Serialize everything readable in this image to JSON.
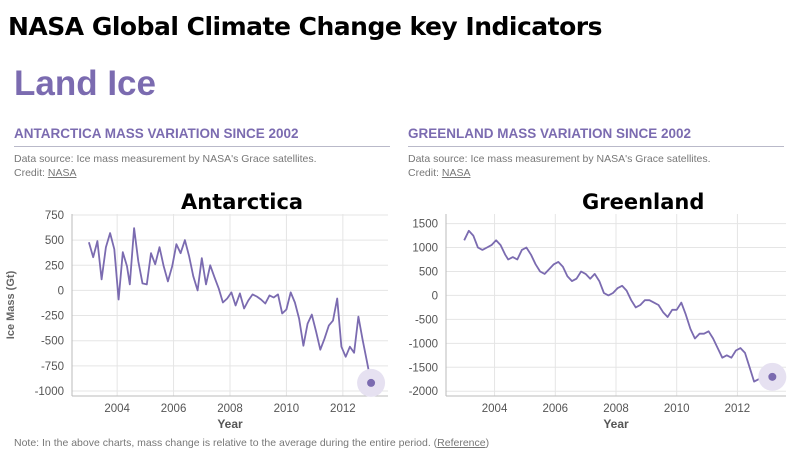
{
  "slide_title": "NASA Global Climate Change key Indicators",
  "section_title": "Land Ice",
  "footnote": {
    "text": "Note: In the above charts, mass change is relative to the average during the entire period. (",
    "link": "Reference",
    "close": ")"
  },
  "colors": {
    "line": "#7b6bb0",
    "marker_halo": "#e6e1f1",
    "grid": "#e5e5e5"
  },
  "chart_data": [
    {
      "type": "line",
      "title": "ANTARCTICA MASS VARIATION SINCE 2002",
      "source": "Data source: Ice mass measurement by NASA's Grace satellites.",
      "credit_label": "Credit:",
      "credit_link": "NASA",
      "overlay_label": "Antarctica",
      "xlabel": "Year",
      "ylabel": "Ice Mass (Gt)",
      "xlim": [
        2002.4,
        2013.6
      ],
      "ylim": [
        -1050,
        760
      ],
      "yticks": [
        750,
        500,
        250,
        0,
        -250,
        -500,
        -750,
        -1000
      ],
      "xticks": [
        2004,
        2006,
        2008,
        2010,
        2012
      ],
      "grid": true,
      "x": [
        2003.0,
        2003.15,
        2003.3,
        2003.45,
        2003.6,
        2003.75,
        2003.9,
        2004.05,
        2004.2,
        2004.35,
        2004.45,
        2004.6,
        2004.75,
        2004.9,
        2005.05,
        2005.2,
        2005.35,
        2005.5,
        2005.65,
        2005.8,
        2005.95,
        2006.1,
        2006.25,
        2006.4,
        2006.55,
        2006.7,
        2006.85,
        2007.0,
        2007.15,
        2007.3,
        2007.45,
        2007.6,
        2007.75,
        2007.9,
        2008.05,
        2008.2,
        2008.35,
        2008.5,
        2008.65,
        2008.8,
        2008.95,
        2009.1,
        2009.25,
        2009.4,
        2009.55,
        2009.7,
        2009.85,
        2010.0,
        2010.15,
        2010.3,
        2010.45,
        2010.6,
        2010.75,
        2010.9,
        2011.05,
        2011.2,
        2011.35,
        2011.5,
        2011.65,
        2011.8,
        2011.95,
        2012.1,
        2012.25,
        2012.4,
        2012.55,
        2012.7,
        2012.85,
        2013.0
      ],
      "y": [
        480,
        330,
        490,
        110,
        430,
        570,
        410,
        -90,
        380,
        240,
        60,
        620,
        290,
        70,
        60,
        370,
        260,
        430,
        240,
        90,
        240,
        460,
        370,
        500,
        340,
        140,
        0,
        320,
        60,
        250,
        130,
        20,
        -120,
        -80,
        -20,
        -150,
        -30,
        -180,
        -100,
        -40,
        -60,
        -90,
        -130,
        -50,
        -70,
        -40,
        -230,
        -190,
        -20,
        -120,
        -280,
        -550,
        -330,
        -240,
        -410,
        -590,
        -480,
        -350,
        -300,
        -80,
        -560,
        -660,
        -560,
        -620,
        -260,
        -490,
        -700,
        -920
      ],
      "marker": {
        "x": 2013.0,
        "y": -920
      }
    },
    {
      "type": "line",
      "title": "GREENLAND MASS VARIATION SINCE 2002",
      "source": "Data source: Ice mass measurement by NASA's Grace satellites.",
      "credit_label": "Credit:",
      "credit_link": "NASA",
      "overlay_label": "Greenland",
      "xlabel": "Year",
      "ylabel": "",
      "xlim": [
        2002.4,
        2013.6
      ],
      "ylim": [
        -2100,
        1700
      ],
      "yticks": [
        1500,
        1000,
        500,
        0,
        -500,
        -1000,
        -1500,
        -2000
      ],
      "xticks": [
        2004,
        2006,
        2008,
        2010,
        2012
      ],
      "grid": true,
      "x": [
        2003.0,
        2003.15,
        2003.3,
        2003.45,
        2003.6,
        2003.75,
        2003.9,
        2004.05,
        2004.2,
        2004.35,
        2004.45,
        2004.6,
        2004.75,
        2004.9,
        2005.05,
        2005.2,
        2005.35,
        2005.5,
        2005.65,
        2005.8,
        2005.95,
        2006.1,
        2006.25,
        2006.4,
        2006.55,
        2006.7,
        2006.85,
        2007.0,
        2007.15,
        2007.3,
        2007.45,
        2007.6,
        2007.75,
        2007.9,
        2008.05,
        2008.2,
        2008.35,
        2008.5,
        2008.65,
        2008.8,
        2008.95,
        2009.1,
        2009.25,
        2009.4,
        2009.55,
        2009.7,
        2009.85,
        2010.0,
        2010.15,
        2010.3,
        2010.45,
        2010.6,
        2010.75,
        2010.9,
        2011.05,
        2011.2,
        2011.35,
        2011.5,
        2011.65,
        2011.8,
        2011.95,
        2012.1,
        2012.25,
        2012.4,
        2012.55,
        2012.7,
        2012.85,
        2013.0,
        2013.15
      ],
      "y": [
        1150,
        1350,
        1250,
        1000,
        950,
        1000,
        1050,
        1150,
        1050,
        850,
        750,
        800,
        750,
        950,
        1000,
        850,
        650,
        500,
        450,
        550,
        650,
        700,
        600,
        400,
        300,
        350,
        500,
        450,
        350,
        450,
        300,
        50,
        0,
        50,
        150,
        200,
        100,
        -100,
        -250,
        -200,
        -100,
        -100,
        -150,
        -200,
        -350,
        -450,
        -300,
        -300,
        -150,
        -400,
        -700,
        -900,
        -800,
        -800,
        -750,
        -900,
        -1100,
        -1300,
        -1250,
        -1300,
        -1150,
        -1100,
        -1200,
        -1500,
        -1800,
        -1750,
        -1650,
        -1700,
        -1700
      ],
      "marker": {
        "x": 2013.15,
        "y": -1700
      }
    }
  ]
}
